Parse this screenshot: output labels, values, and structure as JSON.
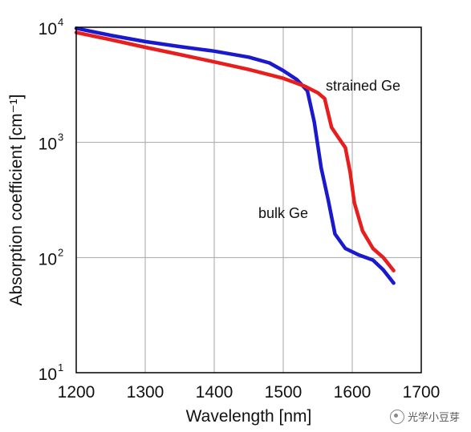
{
  "chart_data": {
    "type": "line",
    "xlabel": "Wavelength [nm]",
    "ylabel": "Absorption coefficient [cm⁻¹]",
    "xlim": [
      1200,
      1700
    ],
    "ylim": [
      10,
      10000
    ],
    "yscale": "log",
    "grid": true,
    "x_ticks": [
      "1200",
      "1300",
      "1400",
      "1500",
      "1600",
      "1700"
    ],
    "y_ticks": [
      {
        "value": 10,
        "base": "10",
        "exp": "1"
      },
      {
        "value": 100,
        "base": "10",
        "exp": "2"
      },
      {
        "value": 1000,
        "base": "10",
        "exp": "3"
      },
      {
        "value": 10000,
        "base": "10",
        "exp": "4"
      }
    ],
    "series": [
      {
        "name": "bulk Ge",
        "color": "#1a1acc",
        "points": [
          [
            1200,
            9800
          ],
          [
            1250,
            8500
          ],
          [
            1300,
            7500
          ],
          [
            1350,
            6800
          ],
          [
            1400,
            6200
          ],
          [
            1450,
            5500
          ],
          [
            1480,
            4900
          ],
          [
            1500,
            4200
          ],
          [
            1520,
            3500
          ],
          [
            1535,
            2800
          ],
          [
            1545,
            1500
          ],
          [
            1555,
            600
          ],
          [
            1565,
            320
          ],
          [
            1575,
            160
          ],
          [
            1590,
            120
          ],
          [
            1610,
            105
          ],
          [
            1630,
            95
          ],
          [
            1645,
            78
          ],
          [
            1660,
            60
          ]
        ]
      },
      {
        "name": "strained Ge",
        "color": "#e81e1e",
        "points": [
          [
            1200,
            9000
          ],
          [
            1250,
            7800
          ],
          [
            1300,
            6700
          ],
          [
            1350,
            5800
          ],
          [
            1400,
            5000
          ],
          [
            1450,
            4300
          ],
          [
            1500,
            3600
          ],
          [
            1530,
            3100
          ],
          [
            1550,
            2700
          ],
          [
            1560,
            2400
          ],
          [
            1570,
            1350
          ],
          [
            1580,
            1100
          ],
          [
            1590,
            900
          ],
          [
            1597,
            550
          ],
          [
            1603,
            300
          ],
          [
            1615,
            170
          ],
          [
            1630,
            120
          ],
          [
            1645,
            100
          ],
          [
            1660,
            77
          ]
        ]
      }
    ],
    "annotations": [
      {
        "text": "strained Ge",
        "series": 1
      },
      {
        "text": "bulk Ge",
        "series": 0
      }
    ]
  },
  "watermark": {
    "text": "光学小豆芽",
    "icon": "wechat-icon"
  }
}
